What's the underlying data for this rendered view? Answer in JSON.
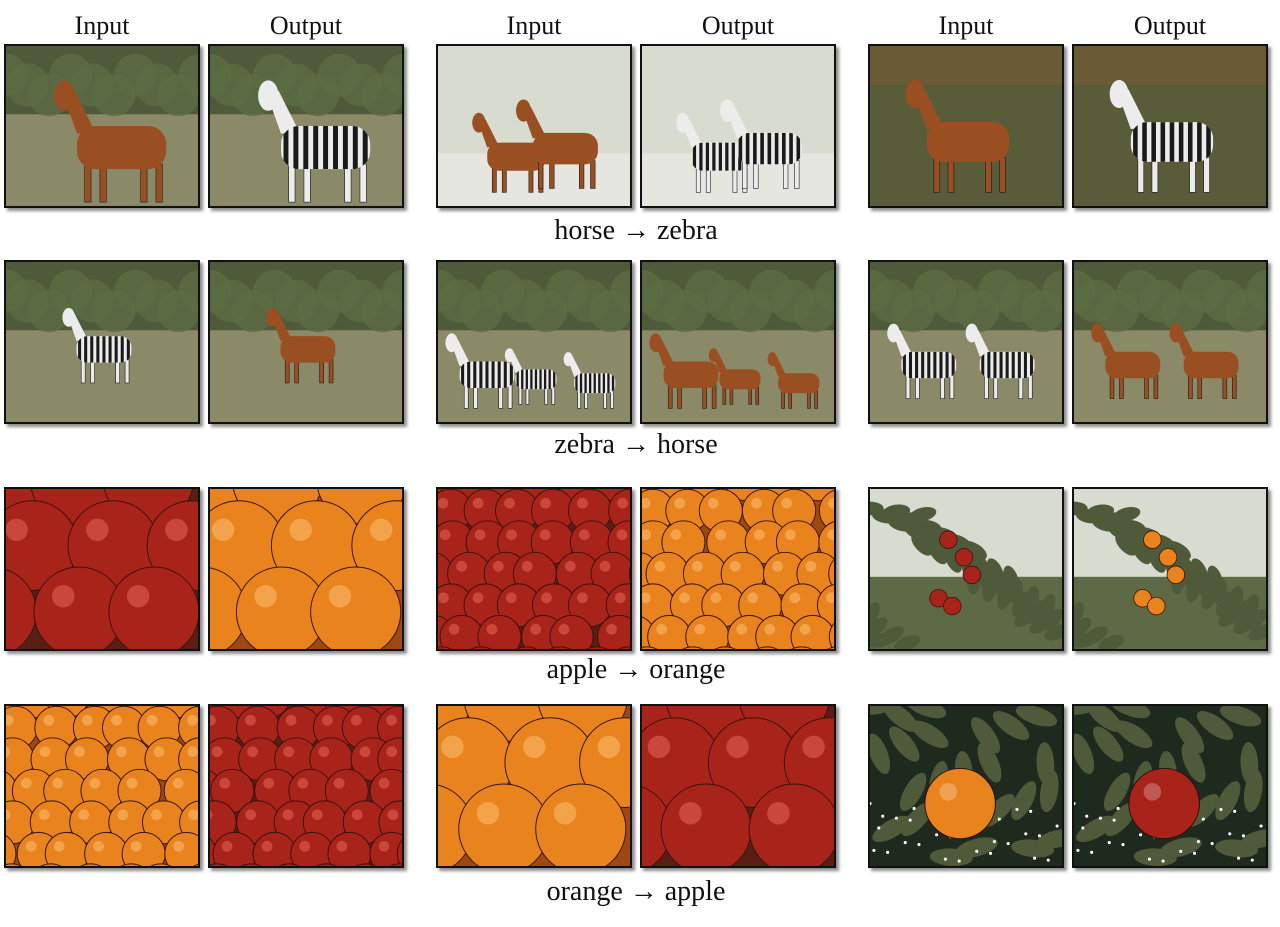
{
  "headers": [
    "Input",
    "Output",
    "Input",
    "Output",
    "Input",
    "Output"
  ],
  "captions": [
    "horse → zebra",
    "zebra → horse",
    "apple → orange",
    "orange → apple"
  ],
  "rows": [
    {
      "task": "horse-to-zebra",
      "panels": [
        {
          "role": "input",
          "subject": "horse"
        },
        {
          "role": "output",
          "subject": "zebra"
        },
        {
          "role": "input",
          "subject": "horse"
        },
        {
          "role": "output",
          "subject": "zebra"
        },
        {
          "role": "input",
          "subject": "horse"
        },
        {
          "role": "output",
          "subject": "zebra"
        }
      ]
    },
    {
      "task": "zebra-to-horse",
      "panels": [
        {
          "role": "input",
          "subject": "zebra"
        },
        {
          "role": "output",
          "subject": "horse"
        },
        {
          "role": "input",
          "subject": "zebra"
        },
        {
          "role": "output",
          "subject": "horse"
        },
        {
          "role": "input",
          "subject": "zebra"
        },
        {
          "role": "output",
          "subject": "horse"
        }
      ]
    },
    {
      "task": "apple-to-orange",
      "panels": [
        {
          "role": "input",
          "subject": "apple"
        },
        {
          "role": "output",
          "subject": "orange"
        },
        {
          "role": "input",
          "subject": "apple"
        },
        {
          "role": "output",
          "subject": "orange"
        },
        {
          "role": "input",
          "subject": "apple"
        },
        {
          "role": "output",
          "subject": "orange"
        }
      ]
    },
    {
      "task": "orange-to-apple",
      "panels": [
        {
          "role": "input",
          "subject": "orange"
        },
        {
          "role": "output",
          "subject": "apple"
        },
        {
          "role": "input",
          "subject": "orange"
        },
        {
          "role": "output",
          "subject": "apple"
        },
        {
          "role": "input",
          "subject": "orange"
        },
        {
          "role": "output",
          "subject": "apple"
        }
      ]
    }
  ],
  "colors": {
    "horse": "#9a4f22",
    "zebra_dark": "#1a1a1a",
    "zebra_light": "#ececec",
    "apple": "#a8231a",
    "orange": "#e8831e",
    "grass": "#8a8a68",
    "foliage": "#4f5a3a",
    "sky": "#d8dcd0",
    "sand": "#e6e6e0"
  }
}
